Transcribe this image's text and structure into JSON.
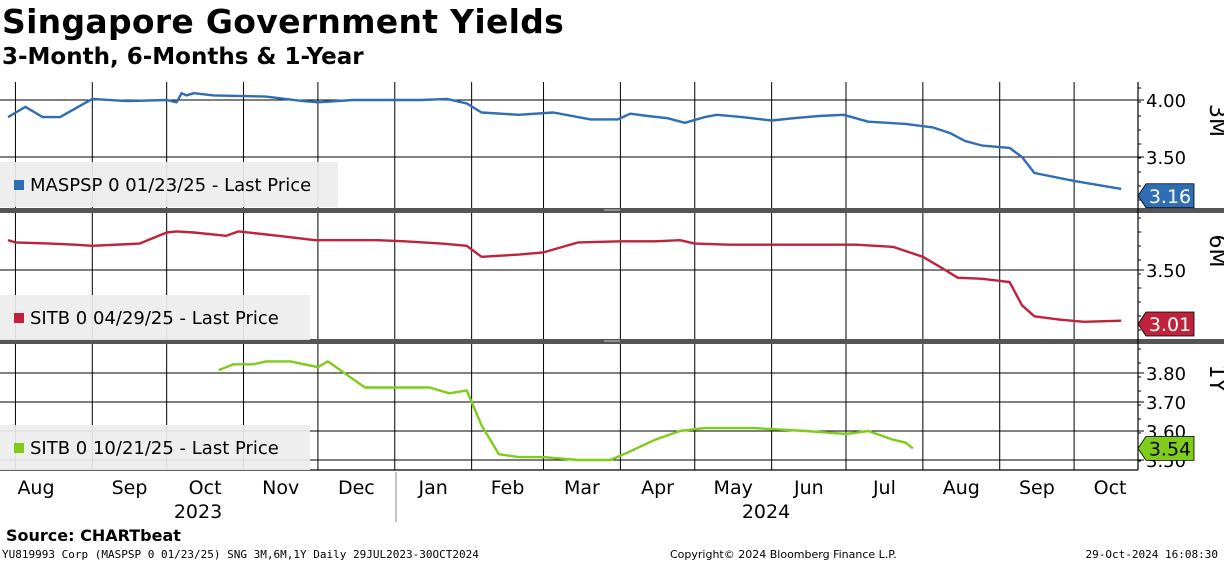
{
  "header": {
    "title": "Singapore Government Yields",
    "subtitle": "3-Month, 6-Months & 1-Year"
  },
  "source": "Source:  CHARTbeat",
  "footer": {
    "left": "YU819993 Corp (MASPSP 0 01/23/25) SNG 3M,6M,1Y  Daily 29JUL2023-30OCT2024",
    "center": "Copyright© 2024 Bloomberg Finance L.P.",
    "right": "29-Oct-2024 16:08:30"
  },
  "chart_data": {
    "type": "line",
    "x_axis": {
      "months": [
        "Aug",
        "Sep",
        "Oct",
        "Nov",
        "Dec",
        "Jan",
        "Feb",
        "Mar",
        "Apr",
        "May",
        "Jun",
        "Jul",
        "Aug",
        "Sep",
        "Oct"
      ],
      "years": [
        "2023",
        "2024"
      ],
      "range": [
        "2023-07-29",
        "2024-10-30"
      ]
    },
    "panels": [
      {
        "id": "3m",
        "side_label": "3M",
        "legend": "MASPSP 0 01/23/25 - Last Price",
        "color": "#2f6db5",
        "last_value": "3.16",
        "ticks": [
          "4.00",
          "3.50"
        ],
        "ylim": [
          3.12,
          4.16
        ],
        "series": [
          [
            "2023-07-29",
            3.85
          ],
          [
            "2023-08-05",
            3.94
          ],
          [
            "2023-08-12",
            3.85
          ],
          [
            "2023-08-19",
            3.85
          ],
          [
            "2023-09-01",
            4.01
          ],
          [
            "2023-09-15",
            3.99
          ],
          [
            "2023-10-01",
            4.0
          ],
          [
            "2023-10-05",
            3.98
          ],
          [
            "2023-10-07",
            4.06
          ],
          [
            "2023-10-09",
            4.04
          ],
          [
            "2023-10-12",
            4.06
          ],
          [
            "2023-10-20",
            4.04
          ],
          [
            "2023-11-10",
            4.03
          ],
          [
            "2023-11-25",
            3.99
          ],
          [
            "2023-12-01",
            3.98
          ],
          [
            "2023-12-15",
            4.0
          ],
          [
            "2023-12-25",
            4.0
          ],
          [
            "2024-01-12",
            4.0
          ],
          [
            "2024-01-22",
            4.01
          ],
          [
            "2024-01-30",
            3.97
          ],
          [
            "2024-02-05",
            3.89
          ],
          [
            "2024-02-20",
            3.87
          ],
          [
            "2024-03-05",
            3.89
          ],
          [
            "2024-03-20",
            3.83
          ],
          [
            "2024-03-31",
            3.83
          ],
          [
            "2024-04-05",
            3.88
          ],
          [
            "2024-04-12",
            3.86
          ],
          [
            "2024-04-20",
            3.84
          ],
          [
            "2024-04-27",
            3.8
          ],
          [
            "2024-05-05",
            3.85
          ],
          [
            "2024-05-10",
            3.87
          ],
          [
            "2024-05-20",
            3.85
          ],
          [
            "2024-06-01",
            3.82
          ],
          [
            "2024-06-10",
            3.84
          ],
          [
            "2024-06-20",
            3.86
          ],
          [
            "2024-06-30",
            3.87
          ],
          [
            "2024-07-10",
            3.81
          ],
          [
            "2024-07-25",
            3.79
          ],
          [
            "2024-08-05",
            3.76
          ],
          [
            "2024-08-12",
            3.71
          ],
          [
            "2024-08-18",
            3.64
          ],
          [
            "2024-08-25",
            3.6
          ],
          [
            "2024-09-05",
            3.58
          ],
          [
            "2024-09-10",
            3.5
          ],
          [
            "2024-09-15",
            3.36
          ],
          [
            "2024-10-01",
            3.29
          ],
          [
            "2024-10-20",
            3.22
          ]
        ]
      },
      {
        "id": "6m",
        "side_label": "6M",
        "legend": "SITB 0 04/29/25 - Last Price",
        "color": "#c0223b",
        "last_value": "3.01",
        "ticks": [
          "3.50"
        ],
        "ylim": [
          2.98,
          3.95
        ],
        "series": [
          [
            "2023-07-29",
            3.77
          ],
          [
            "2023-08-01",
            3.75
          ],
          [
            "2023-08-15",
            3.74
          ],
          [
            "2023-08-25",
            3.73
          ],
          [
            "2023-09-01",
            3.72
          ],
          [
            "2023-09-20",
            3.74
          ],
          [
            "2023-10-01",
            3.84
          ],
          [
            "2023-10-05",
            3.85
          ],
          [
            "2023-10-12",
            3.84
          ],
          [
            "2023-10-25",
            3.81
          ],
          [
            "2023-10-30",
            3.85
          ],
          [
            "2023-11-15",
            3.81
          ],
          [
            "2023-11-30",
            3.77
          ],
          [
            "2023-12-15",
            3.77
          ],
          [
            "2023-12-25",
            3.77
          ],
          [
            "2024-01-05",
            3.76
          ],
          [
            "2024-01-20",
            3.74
          ],
          [
            "2024-01-30",
            3.72
          ],
          [
            "2024-02-05",
            3.62
          ],
          [
            "2024-02-20",
            3.64
          ],
          [
            "2024-03-01",
            3.66
          ],
          [
            "2024-03-15",
            3.75
          ],
          [
            "2024-04-01",
            3.76
          ],
          [
            "2024-04-15",
            3.76
          ],
          [
            "2024-04-25",
            3.77
          ],
          [
            "2024-05-01",
            3.74
          ],
          [
            "2024-05-15",
            3.73
          ],
          [
            "2024-06-01",
            3.73
          ],
          [
            "2024-06-20",
            3.73
          ],
          [
            "2024-07-05",
            3.73
          ],
          [
            "2024-07-20",
            3.71
          ],
          [
            "2024-08-01",
            3.62
          ],
          [
            "2024-08-10",
            3.5
          ],
          [
            "2024-08-15",
            3.43
          ],
          [
            "2024-08-25",
            3.42
          ],
          [
            "2024-09-05",
            3.39
          ],
          [
            "2024-09-10",
            3.18
          ],
          [
            "2024-09-15",
            3.08
          ],
          [
            "2024-09-25",
            3.05
          ],
          [
            "2024-10-05",
            3.03
          ],
          [
            "2024-10-20",
            3.04
          ]
        ]
      },
      {
        "id": "1y",
        "side_label": "1Y",
        "legend": "SITB 0 10/21/25 - Last Price",
        "color": "#7fcc1a",
        "last_value": "3.54",
        "ticks": [
          "3.80",
          "3.70",
          "3.60",
          "3.50"
        ],
        "ylim": [
          3.48,
          3.91
        ],
        "series": [
          [
            "2023-10-22",
            3.81
          ],
          [
            "2023-10-28",
            3.83
          ],
          [
            "2023-11-05",
            3.83
          ],
          [
            "2023-11-10",
            3.84
          ],
          [
            "2023-11-20",
            3.84
          ],
          [
            "2023-12-01",
            3.82
          ],
          [
            "2023-12-05",
            3.84
          ],
          [
            "2023-12-15",
            3.78
          ],
          [
            "2023-12-20",
            3.75
          ],
          [
            "2023-12-25",
            3.75
          ],
          [
            "2024-01-05",
            3.75
          ],
          [
            "2024-01-15",
            3.75
          ],
          [
            "2024-01-23",
            3.73
          ],
          [
            "2024-01-30",
            3.74
          ],
          [
            "2024-02-05",
            3.62
          ],
          [
            "2024-02-12",
            3.52
          ],
          [
            "2024-02-20",
            3.51
          ],
          [
            "2024-03-01",
            3.51
          ],
          [
            "2024-03-15",
            3.5
          ],
          [
            "2024-03-28",
            3.5
          ],
          [
            "2024-04-05",
            3.53
          ],
          [
            "2024-04-15",
            3.57
          ],
          [
            "2024-04-25",
            3.6
          ],
          [
            "2024-05-05",
            3.61
          ],
          [
            "2024-05-25",
            3.61
          ],
          [
            "2024-06-15",
            3.6
          ],
          [
            "2024-07-01",
            3.59
          ],
          [
            "2024-07-10",
            3.6
          ],
          [
            "2024-07-20",
            3.57
          ],
          [
            "2024-07-25",
            3.56
          ],
          [
            "2024-07-28",
            3.54
          ]
        ]
      }
    ]
  }
}
